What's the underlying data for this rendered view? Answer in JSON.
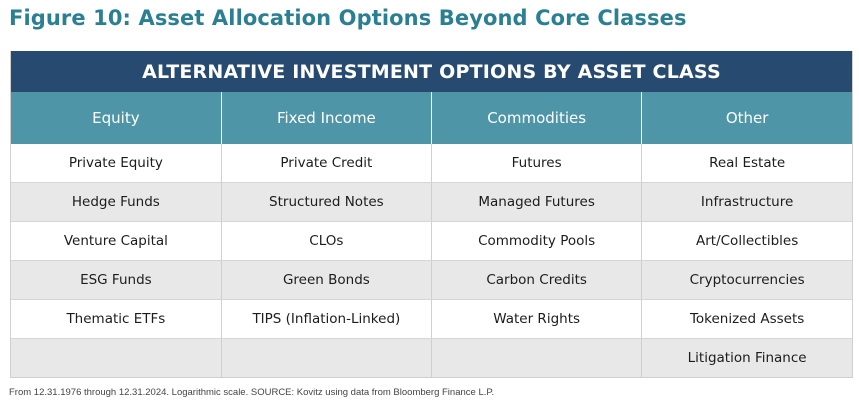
{
  "figure_title": "Figure 10:  Asset Allocation Options Beyond Core Classes",
  "banner": "ALTERNATIVE INVESTMENT OPTIONS BY ASSET CLASS",
  "columns": [
    "Equity",
    "Fixed Income",
    "Commodities",
    "Other"
  ],
  "rows": [
    [
      "Private Equity",
      "Private Credit",
      "Futures",
      "Real Estate"
    ],
    [
      "Hedge Funds",
      "Structured Notes",
      "Managed Futures",
      "Infrastructure"
    ],
    [
      "Venture Capital",
      "CLOs",
      "Commodity Pools",
      "Art/Collectibles"
    ],
    [
      "ESG Funds",
      "Green Bonds",
      "Carbon Credits",
      "Cryptocurrencies"
    ],
    [
      "Thematic ETFs",
      "TIPS (Inflation-Linked)",
      "Water Rights",
      "Tokenized Assets"
    ],
    [
      "",
      "",
      "",
      "Litigation Finance"
    ]
  ],
  "footnote": "From 12.31.1976 through 12.31.2024. Logarithmic scale. SOURCE: Kovitz using data from Bloomberg Finance L.P.",
  "colors": {
    "title": "#2a7f93",
    "banner_bg": "#264a70",
    "header_bg": "#4e96a7",
    "stripe": "#e8e8e8"
  }
}
